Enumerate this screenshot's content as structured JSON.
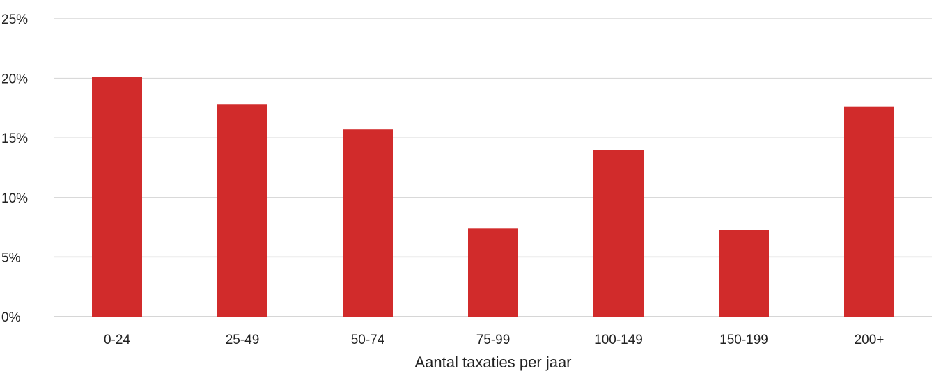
{
  "chart_data": {
    "type": "bar",
    "categories": [
      "0-24",
      "25-49",
      "50-74",
      "75-99",
      "100-149",
      "150-199",
      "200+"
    ],
    "values": [
      20.1,
      17.8,
      15.7,
      7.4,
      14.0,
      7.3,
      17.6
    ],
    "xlabel": "Aantal taxaties per jaar",
    "ylabel": "",
    "ylim": [
      0,
      25
    ],
    "yticks": [
      0,
      5,
      10,
      15,
      20,
      25
    ],
    "ytick_labels": [
      "0%",
      "5%",
      "10%",
      "15%",
      "20%",
      "25%"
    ],
    "grid": true,
    "legend": "none",
    "bar_color": "#d12b2b"
  }
}
